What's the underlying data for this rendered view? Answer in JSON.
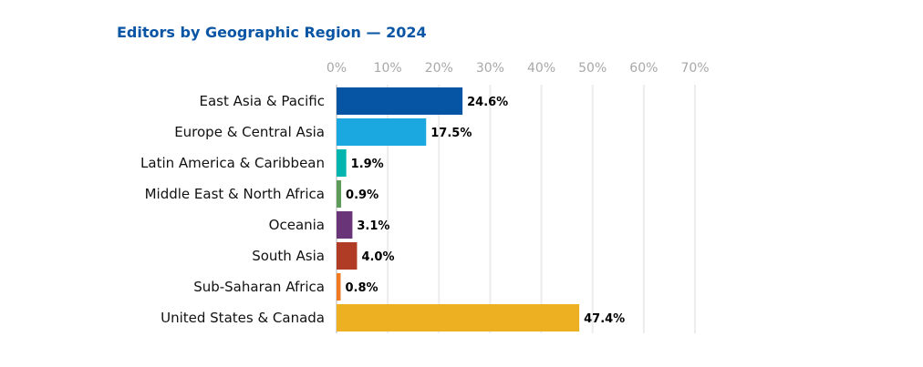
{
  "chart_data": {
    "type": "bar",
    "orientation": "horizontal",
    "title": "Editors by Geographic Region — 2024",
    "categories": [
      "East Asia & Pacific",
      "Europe & Central Asia",
      "Latin America & Caribbean",
      "Middle East & North Africa",
      "Oceania",
      "South Asia",
      "Sub-Saharan Africa",
      "United States & Canada"
    ],
    "values": [
      24.6,
      17.5,
      1.9,
      0.9,
      3.1,
      4.0,
      0.8,
      47.4
    ],
    "value_labels": [
      "24.6%",
      "17.5%",
      "1.9%",
      "0.9%",
      "3.1%",
      "4.0%",
      "0.8%",
      "47.4%"
    ],
    "colors": [
      "#0654a4",
      "#1ba8e0",
      "#00b5ad",
      "#5e9b5a",
      "#6a3578",
      "#b03c25",
      "#f07a22",
      "#ecb022"
    ],
    "xlim": [
      0,
      70
    ],
    "x_ticks": [
      "0%",
      "10%",
      "20%",
      "30%",
      "40%",
      "50%",
      "60%",
      "70%"
    ],
    "x_axis_position": "top",
    "grid": true,
    "xlabel": "",
    "ylabel": ""
  }
}
